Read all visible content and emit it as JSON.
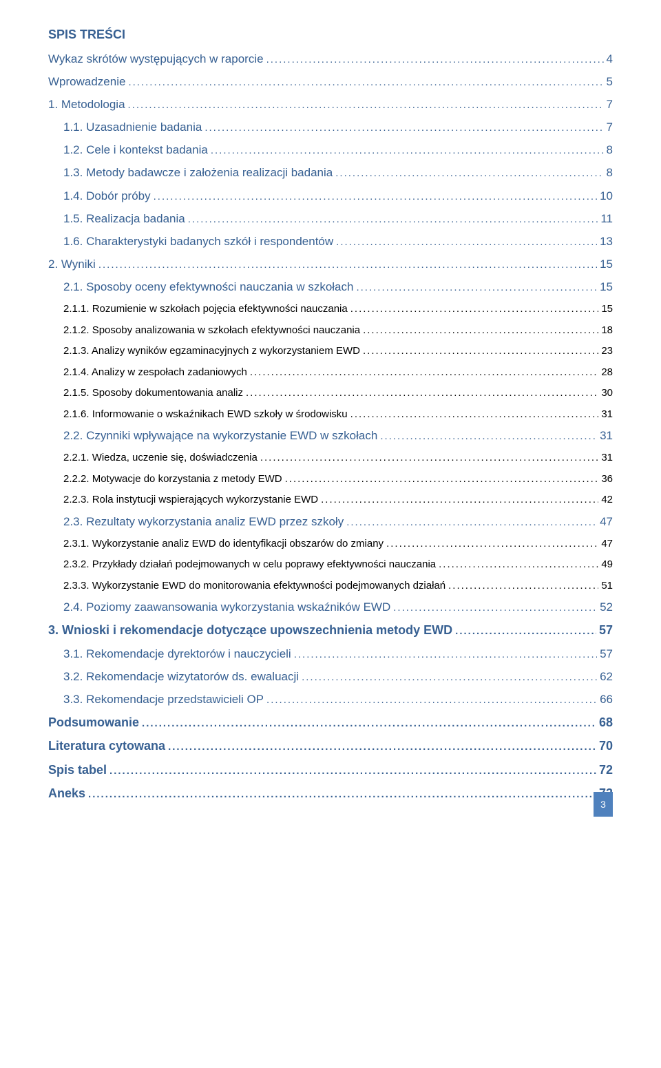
{
  "title": "SPIS TREŚCI",
  "page_number": "3",
  "colors": {
    "heading": "#376092",
    "body": "#000000",
    "page_badge_bg": "#4f81bd",
    "page_badge_fg": "#ffffff",
    "background": "#ffffff"
  },
  "typography": {
    "title_fontsize": 18,
    "lvl0_fontsize": 18,
    "lvl1_fontsize": 17,
    "lvl2_fontsize": 17,
    "lvl3_fontsize": 15,
    "font_family": "Arial"
  },
  "entries": [
    {
      "level": 1,
      "label": "Wykaz skrótów występujących w raporcie",
      "page": "4"
    },
    {
      "level": 1,
      "label": "Wprowadzenie",
      "page": "5"
    },
    {
      "level": 1,
      "label": "1. Metodologia",
      "page": "7"
    },
    {
      "level": 2,
      "label": "1.1. Uzasadnienie badania",
      "page": "7"
    },
    {
      "level": 2,
      "label": "1.2. Cele i kontekst badania",
      "page": "8"
    },
    {
      "level": 2,
      "label": "1.3. Metody badawcze i założenia realizacji badania",
      "page": "8"
    },
    {
      "level": 2,
      "label": "1.4. Dobór próby",
      "page": "10"
    },
    {
      "level": 2,
      "label": "1.5. Realizacja badania",
      "page": "11"
    },
    {
      "level": 2,
      "label": "1.6. Charakterystyki badanych szkół i respondentów",
      "page": "13"
    },
    {
      "level": 1,
      "label": "2. Wyniki",
      "page": "15"
    },
    {
      "level": 2,
      "label": "2.1. Sposoby oceny efektywności nauczania w szkołach",
      "page": "15"
    },
    {
      "level": 3,
      "label": "2.1.1. Rozumienie w szkołach pojęcia efektywności nauczania",
      "page": "15"
    },
    {
      "level": 3,
      "label": "2.1.2. Sposoby analizowania w szkołach efektywności nauczania",
      "page": "18"
    },
    {
      "level": 3,
      "label": "2.1.3. Analizy wyników egzaminacyjnych z wykorzystaniem EWD",
      "page": "23"
    },
    {
      "level": 3,
      "label": "2.1.4. Analizy w zespołach zadaniowych",
      "page": "28"
    },
    {
      "level": 3,
      "label": "2.1.5. Sposoby dokumentowania analiz",
      "page": "30"
    },
    {
      "level": 3,
      "label": "2.1.6. Informowanie o wskaźnikach EWD szkoły w środowisku",
      "page": "31"
    },
    {
      "level": 2,
      "label": "2.2. Czynniki wpływające na wykorzystanie EWD w szkołach",
      "page": "31"
    },
    {
      "level": 3,
      "label": "2.2.1. Wiedza, uczenie się, doświadczenia",
      "page": "31"
    },
    {
      "level": 3,
      "label": "2.2.2. Motywacje do korzystania z  metody EWD",
      "page": "36"
    },
    {
      "level": 3,
      "label": "2.2.3. Rola instytucji wspierających wykorzystanie EWD",
      "page": "42"
    },
    {
      "level": 2,
      "label": "2.3. Rezultaty wykorzystania analiz EWD przez szkoły",
      "page": "47"
    },
    {
      "level": 3,
      "label": "2.3.1. Wykorzystanie analiz EWD do identyfikacji obszarów do zmiany",
      "page": "47"
    },
    {
      "level": 3,
      "label": "2.3.2. Przykłady działań podejmowanych  w celu poprawy efektywności nauczania",
      "page": "49"
    },
    {
      "level": 3,
      "label": "2.3.3. Wykorzystanie EWD do monitorowania efektywności podejmowanych działań",
      "page": "51"
    },
    {
      "level": 2,
      "label": "2.4. Poziomy zaawansowania wykorzystania wskaźników EWD",
      "page": "52"
    },
    {
      "level": 0,
      "label": "3. Wnioski i rekomendacje dotyczące upowszechnienia metody EWD",
      "page": "57"
    },
    {
      "level": 2,
      "label": "3.1. Rekomendacje dyrektorów i nauczycieli",
      "page": "57"
    },
    {
      "level": 2,
      "label": "3.2. Rekomendacje wizytatorów ds. ewaluacji",
      "page": "62"
    },
    {
      "level": 2,
      "label": "3.3. Rekomendacje przedstawicieli OP",
      "page": "66"
    },
    {
      "level": 0,
      "label": "Podsumowanie",
      "page": "68"
    },
    {
      "level": 0,
      "label": "Literatura cytowana",
      "page": "70"
    },
    {
      "level": 0,
      "label": "Spis tabel",
      "page": "72"
    },
    {
      "level": 0,
      "label": "Aneks",
      "page": "73"
    }
  ]
}
